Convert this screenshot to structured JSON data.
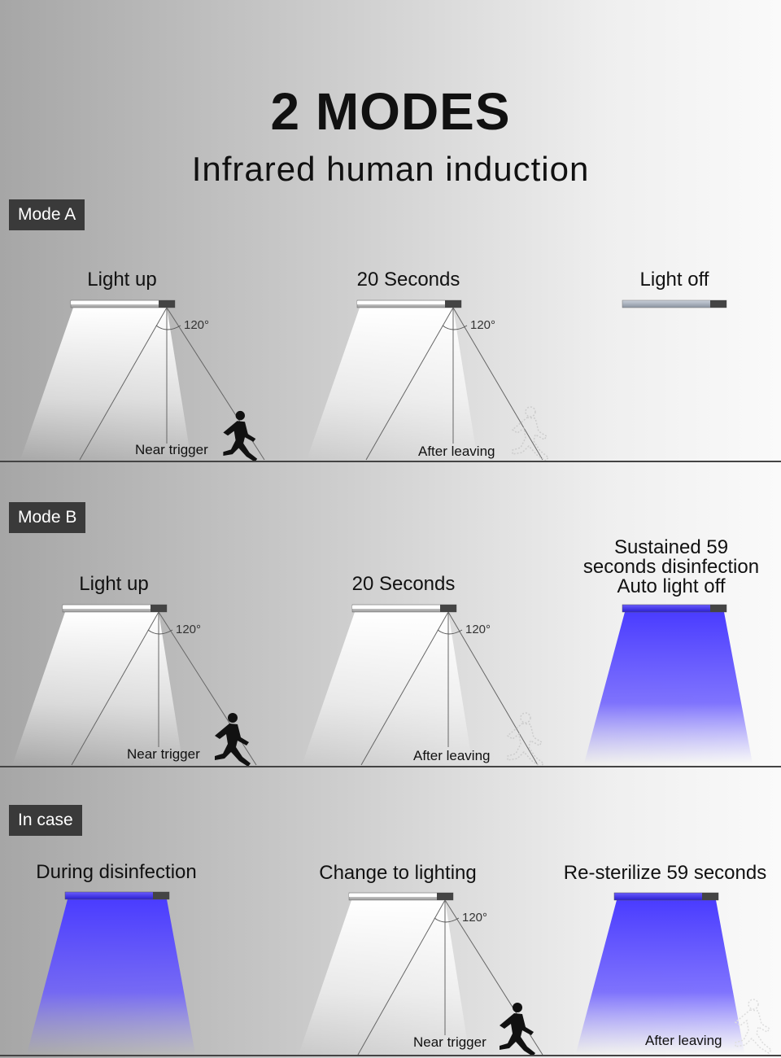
{
  "title": "2 MODES",
  "subtitle": "Infrared human induction",
  "sections": {
    "mode_a": {
      "tag": "Mode A",
      "panels": [
        {
          "caption": "Light up",
          "label": "Near trigger",
          "angle": "120°"
        },
        {
          "caption": "20 Seconds",
          "label": "After leaving",
          "angle": "120°"
        },
        {
          "caption": "Light off"
        }
      ]
    },
    "mode_b": {
      "tag": "Mode B",
      "panels": [
        {
          "caption": "Light up",
          "label": "Near trigger",
          "angle": "120°"
        },
        {
          "caption": "20 Seconds",
          "label": "After leaving",
          "angle": "120°"
        },
        {
          "caption_lines": [
            "Sustained 59",
            "seconds disinfection",
            "Auto light off"
          ]
        }
      ]
    },
    "in_case": {
      "tag": "In case",
      "panels": [
        {
          "caption": "During disinfection"
        },
        {
          "caption": "Change to lighting",
          "label": "Near trigger",
          "angle": "120°"
        },
        {
          "caption": "Re-sterilize 59 seconds",
          "label": "After leaving"
        }
      ]
    }
  },
  "colors": {
    "white_light": "#ffffff",
    "uv_light": "#5b4cff",
    "tag_bg": "#3a3a3a"
  }
}
